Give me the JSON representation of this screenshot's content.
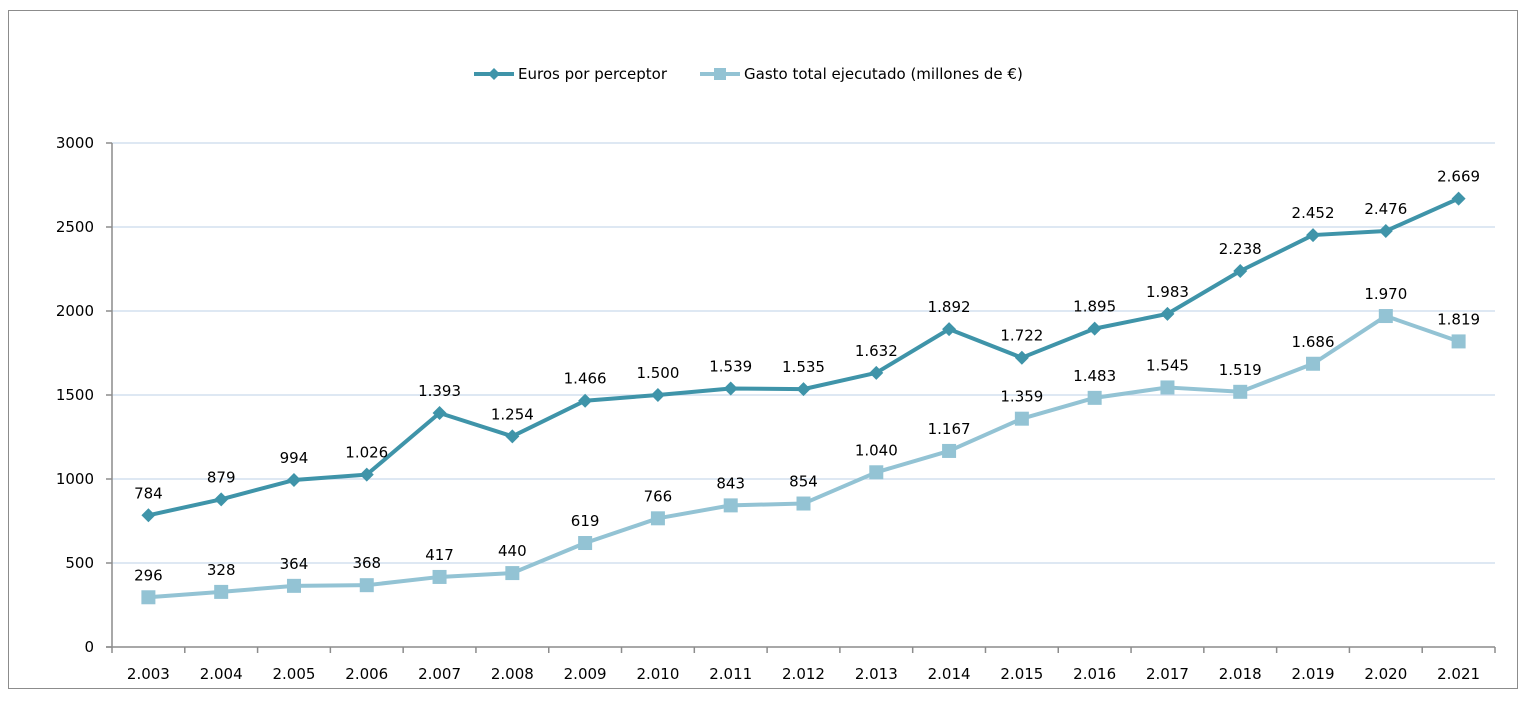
{
  "chart_data": {
    "type": "line",
    "title": "",
    "xlabel": "",
    "ylabel": "",
    "ylim": [
      0,
      3000
    ],
    "yticks": [
      0,
      500,
      1000,
      1500,
      2000,
      2500,
      3000
    ],
    "ytick_labels": [
      "0",
      "500",
      "1000",
      "1500",
      "2000",
      "2500",
      "3000"
    ],
    "grid": true,
    "legend_position": "top-center",
    "categories": [
      "2.003",
      "2.004",
      "2.005",
      "2.006",
      "2.007",
      "2.008",
      "2.009",
      "2.010",
      "2.011",
      "2.012",
      "2.013",
      "2.014",
      "2.015",
      "2.016",
      "2.017",
      "2.018",
      "2.019",
      "2.020",
      "2.021"
    ],
    "series": [
      {
        "name": "Euros por perceptor",
        "color": "#3f94a9",
        "marker": "diamond",
        "values": [
          784,
          879,
          994,
          1026,
          1393,
          1254,
          1466,
          1500,
          1539,
          1535,
          1632,
          1892,
          1722,
          1895,
          1983,
          2238,
          2452,
          2476,
          2669
        ],
        "labels": [
          "784",
          "879",
          "994",
          "1.026",
          "1.393",
          "1.254",
          "1.466",
          "1.500",
          "1.539",
          "1.535",
          "1.632",
          "1.892",
          "1.722",
          "1.895",
          "1.983",
          "2.238",
          "2.452",
          "2.476",
          "2.669"
        ]
      },
      {
        "name": "Gasto total ejecutado (millones de €)",
        "color": "#93c3d4",
        "marker": "square",
        "values": [
          296,
          328,
          364,
          368,
          417,
          440,
          619,
          766,
          843,
          854,
          1040,
          1167,
          1359,
          1483,
          1545,
          1519,
          1686,
          1970,
          1819
        ],
        "labels": [
          "296",
          "328",
          "364",
          "368",
          "417",
          "440",
          "619",
          "766",
          "843",
          "854",
          "1.040",
          "1.167",
          "1.359",
          "1.483",
          "1.545",
          "1.519",
          "1.686",
          "1.970",
          "1.819"
        ]
      }
    ]
  },
  "colors": {
    "gridline": "#c9d9ec",
    "axis": "#8c8c8c",
    "frame": "#8c8c8c"
  }
}
